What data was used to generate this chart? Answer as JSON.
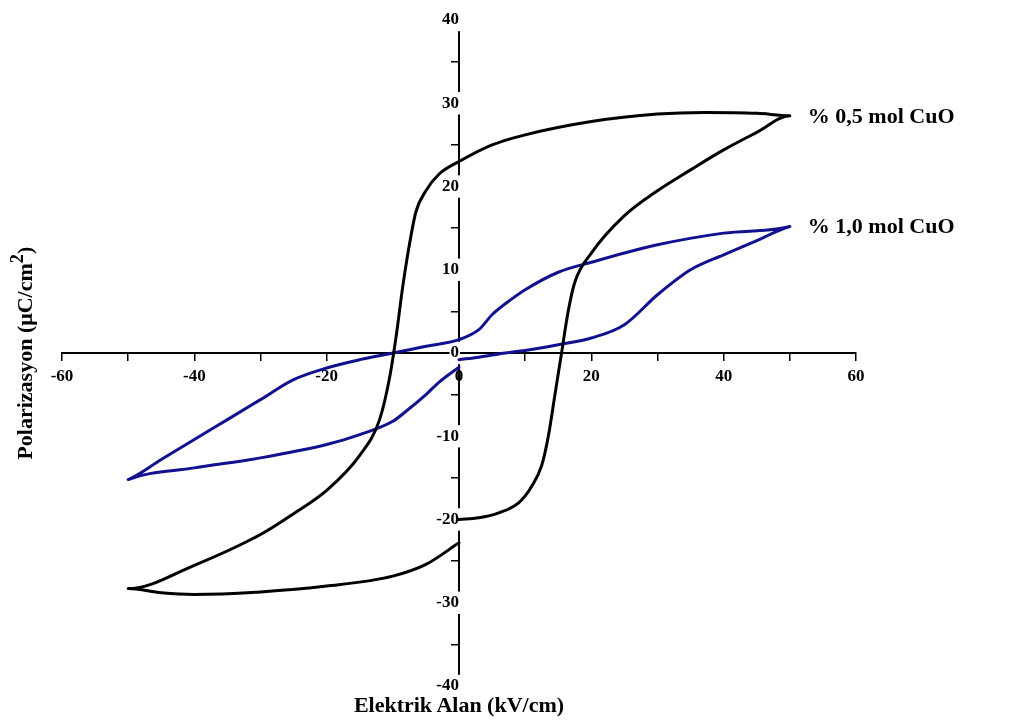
{
  "chart_data": {
    "type": "line",
    "xlabel": "Elektrik Alan (kV/cm)",
    "ylabel": "Polarizasyon (μC/cm$^{2}$)",
    "xlim": [
      -60,
      60
    ],
    "xticks": [
      -60,
      {
        "value": -50,
        "label": null
      },
      -40,
      {
        "value": -30,
        "label": null
      },
      -20,
      {
        "value": -10,
        "label": null
      },
      0,
      {
        "value": 10,
        "label": null
      },
      20,
      {
        "value": 30,
        "label": null
      },
      40,
      {
        "value": 50,
        "label": null
      },
      60
    ],
    "ylim": [
      -40,
      40
    ],
    "yticks": [
      -40,
      {
        "value": -35,
        "label": null
      },
      -30,
      {
        "value": -25,
        "label": null
      },
      -20,
      {
        "value": -15,
        "label": null
      },
      -10,
      {
        "value": -5,
        "label": null
      },
      0,
      {
        "value": 5,
        "label": null
      },
      10,
      {
        "value": 15,
        "label": null
      },
      20,
      {
        "value": 25,
        "label": null
      },
      30,
      {
        "value": 35,
        "label": null
      },
      40
    ],
    "marker": "none",
    "line_style": "solid",
    "series": [
      {
        "name": "% 0,5 mol CuO",
        "color": "#000000",
        "x": [
          0,
          3,
          6,
          9,
          11,
          12.5,
          13.5,
          14.5,
          15.5,
          16.5,
          17.5,
          20,
          25,
          30,
          35,
          40,
          45,
          50,
          45,
          37,
          30,
          20,
          10,
          5,
          0,
          -3,
          -5,
          -6.5,
          -7.5,
          -8.5,
          -9.5,
          -10.5,
          -12,
          -15,
          -20,
          -25,
          -30,
          -40,
          -50,
          -45,
          -40,
          -30,
          -20,
          -10,
          -5,
          0
        ],
        "values": [
          -20,
          -19.8,
          -19.2,
          -18,
          -16,
          -13.5,
          -10,
          -5,
          0,
          5,
          8.5,
          12,
          16.5,
          19.5,
          22,
          24.4,
          26.5,
          28.5,
          28.8,
          28.9,
          28.7,
          27.8,
          26.2,
          25,
          23,
          21.5,
          19.5,
          17,
          13,
          8,
          2,
          -3,
          -8,
          -12.3,
          -16.5,
          -19.3,
          -21.8,
          -25.5,
          -28.3,
          -28.8,
          -29,
          -28.7,
          -28,
          -26.8,
          -25.4,
          -22.8
        ]
      },
      {
        "name": "% 1,0 mol CuO",
        "color": "#101090",
        "x": [
          0,
          -3,
          -5,
          -8,
          -10,
          -15,
          -20,
          -30,
          -40,
          -50,
          -45,
          -40,
          -35,
          -30,
          -25,
          -20,
          -15,
          -10,
          -5,
          0,
          3,
          5,
          8,
          10,
          15,
          20,
          30,
          40,
          50,
          45,
          40,
          35,
          30,
          25,
          20,
          15,
          10,
          7,
          3,
          0
        ],
        "values": [
          -1.7,
          -3.5,
          -5,
          -7,
          -8.2,
          -9.8,
          -11,
          -12.6,
          -13.8,
          -15.2,
          -12.8,
          -10.4,
          -8,
          -5.6,
          -3.2,
          -1.8,
          -0.8,
          0,
          0.8,
          1.6,
          2.8,
          4.6,
          6.5,
          7.6,
          9.7,
          10.9,
          13,
          14.4,
          15.2,
          13.5,
          11.8,
          10,
          7,
          3.4,
          1.8,
          1,
          0.3,
          0,
          -0.5,
          -0.8
        ]
      }
    ]
  }
}
